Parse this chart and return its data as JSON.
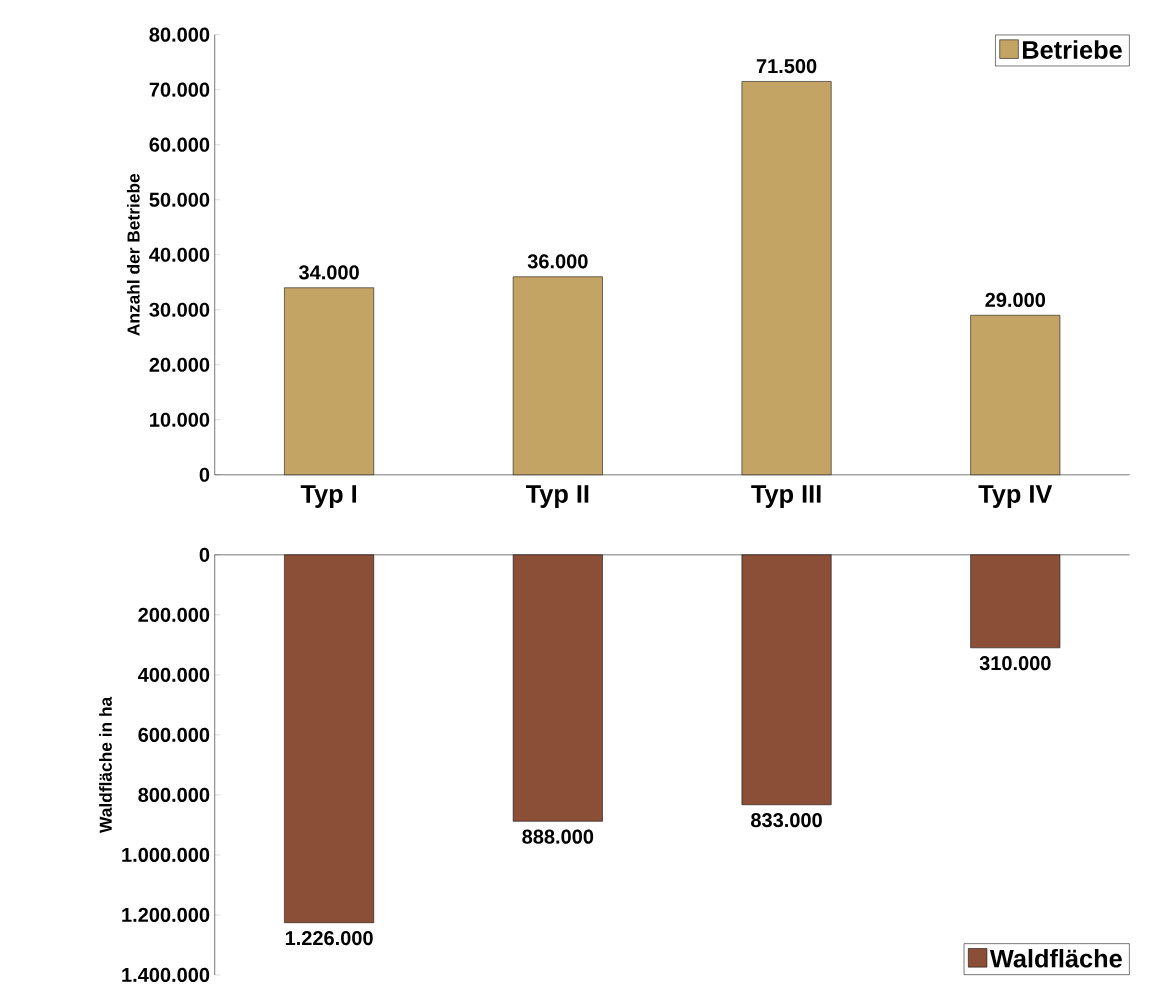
{
  "chart_data": [
    {
      "type": "bar",
      "categories": [
        "Typ I",
        "Typ II",
        "Typ III",
        "Typ IV"
      ],
      "ylabel": "Anzahl der Betriebe",
      "series": [
        {
          "name": "Betriebe",
          "color": "#c4a464",
          "values": [
            34000,
            36000,
            71500,
            29000
          ],
          "value_labels": [
            "34.000",
            "36.000",
            "71.500",
            "29.000"
          ]
        }
      ],
      "ylim": [
        0,
        80000
      ],
      "yticks": [
        0,
        {
          "value": 10000,
          "label": "10.000"
        },
        {
          "value": 20000,
          "label": "20.000"
        },
        {
          "value": 30000,
          "label": "30.000"
        },
        {
          "value": 40000,
          "label": "40.000"
        },
        {
          "value": 50000,
          "label": "50.000"
        },
        {
          "value": 60000,
          "label": "60.000"
        },
        {
          "value": 70000,
          "label": "70.000"
        },
        {
          "value": 80000,
          "label": "80.000"
        }
      ],
      "legend": "top right"
    },
    {
      "type": "bar",
      "categories": [
        null,
        null,
        null,
        null
      ],
      "ylabel": "Waldfläche in ha",
      "tick_labels": "y",
      "series": [
        {
          "name": "Waldfläche",
          "color": "#8b4f38",
          "values": [
            1226000,
            888000,
            833000,
            310000
          ],
          "value_labels": [
            "1.226.000",
            "888.000",
            "833.000",
            "310.000"
          ]
        }
      ],
      "ylim": [
        1400000,
        0
      ],
      "yticks": [
        0,
        {
          "value": 200000,
          "label": "200.000"
        },
        {
          "value": 400000,
          "label": "400.000"
        },
        {
          "value": 600000,
          "label": "600.000"
        },
        {
          "value": 800000,
          "label": "800.000"
        },
        {
          "value": 1000000,
          "label": "1.000.000"
        },
        {
          "value": 1200000,
          "label": "1.200.000"
        },
        {
          "value": 1400000,
          "label": "1.400.000"
        }
      ],
      "legend": "bottom right"
    }
  ]
}
